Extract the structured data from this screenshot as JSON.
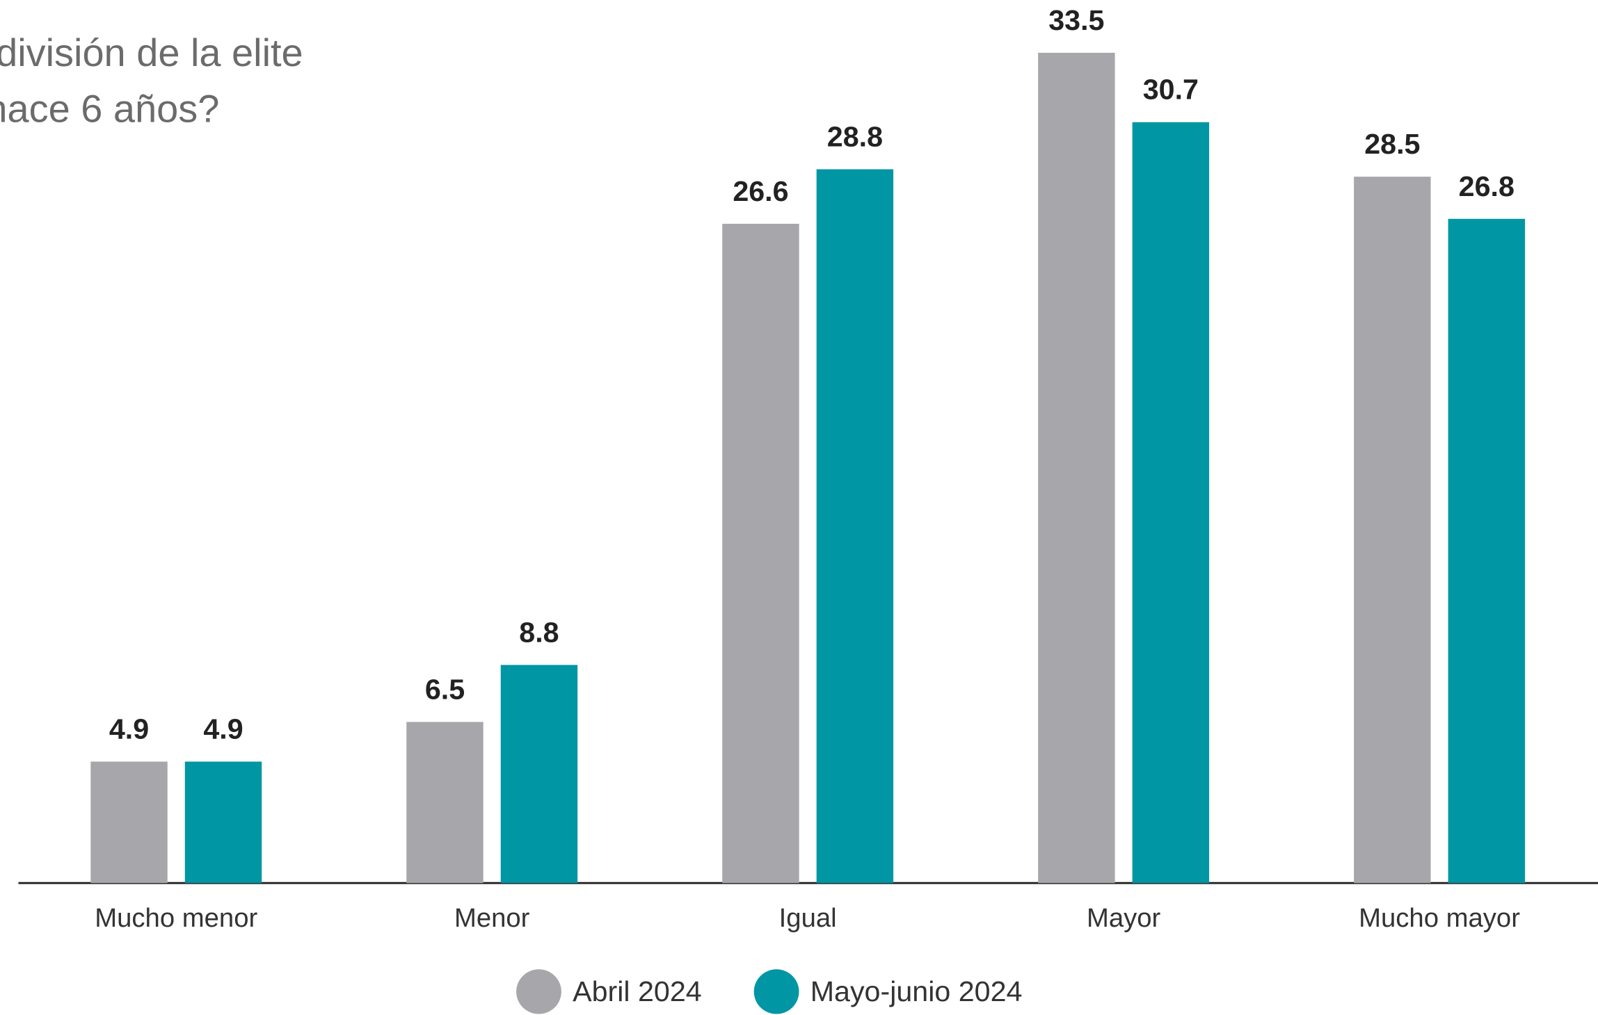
{
  "chart_data": {
    "type": "bar",
    "title": [
      "división de la elite",
      "hace 6 años?"
    ],
    "categories": [
      "Mucho menor",
      "Menor",
      "Igual",
      "Mayor",
      "Mucho mayor"
    ],
    "series": [
      {
        "name": "Abril 2024",
        "color": "#a7a6aa",
        "values": [
          4.9,
          6.5,
          26.6,
          33.5,
          28.5
        ]
      },
      {
        "name": "Mayo-junio 2024",
        "color": "#0096a3",
        "values": [
          4.9,
          8.8,
          28.8,
          30.7,
          26.8
        ]
      }
    ]
  }
}
